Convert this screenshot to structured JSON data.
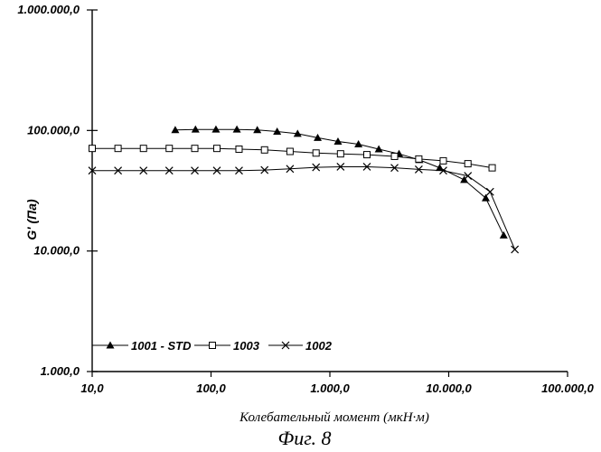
{
  "chart_data": {
    "type": "line",
    "x_scale": "log",
    "y_scale": "log",
    "xlim": [
      10,
      100000
    ],
    "ylim": [
      1000,
      1000000
    ],
    "x_ticks": [
      {
        "value": 10,
        "label": "10,0"
      },
      {
        "value": 100,
        "label": "100,0"
      },
      {
        "value": 1000,
        "label": "1.000,0"
      },
      {
        "value": 10000,
        "label": "10.000,0"
      },
      {
        "value": 100000,
        "label": "100.000,0"
      }
    ],
    "y_ticks": [
      {
        "value": 1000,
        "label": "1.000,0"
      },
      {
        "value": 10000,
        "label": "10.000,0"
      },
      {
        "value": 100000,
        "label": "100.000,0"
      },
      {
        "value": 1000000,
        "label": "1.000.000,0"
      }
    ],
    "xlabel": "Колебательный момент (мкН·м)",
    "ylabel": "G' (Па)",
    "legend_position": "lower-left",
    "grid": false,
    "series": [
      {
        "name": "1001 - STD",
        "marker": "filled-triangle",
        "points": [
          [
            50,
            101000
          ],
          [
            74,
            102000
          ],
          [
            110,
            102000
          ],
          [
            165,
            102000
          ],
          [
            245,
            101000
          ],
          [
            360,
            98000
          ],
          [
            535,
            94000
          ],
          [
            790,
            87000
          ],
          [
            1170,
            81000
          ],
          [
            1740,
            77000
          ],
          [
            2580,
            70000
          ],
          [
            3820,
            64000
          ],
          [
            5660,
            57000
          ],
          [
            8400,
            49000
          ],
          [
            13500,
            39000
          ],
          [
            20500,
            27500
          ],
          [
            29000,
            13500
          ]
        ]
      },
      {
        "name": "1003",
        "marker": "open-square",
        "points": [
          [
            10,
            71000
          ],
          [
            16.5,
            71000
          ],
          [
            27,
            71000
          ],
          [
            44.5,
            71000
          ],
          [
            73,
            71000
          ],
          [
            112,
            71000
          ],
          [
            172,
            70000
          ],
          [
            282,
            69000
          ],
          [
            462,
            67000
          ],
          [
            765,
            65000
          ],
          [
            1230,
            64000
          ],
          [
            2050,
            63000
          ],
          [
            3500,
            61000
          ],
          [
            5600,
            58000
          ],
          [
            9000,
            56000
          ],
          [
            14500,
            53000
          ],
          [
            23200,
            49000
          ]
        ]
      },
      {
        "name": "1002",
        "marker": "x-cross",
        "points": [
          [
            10,
            46500
          ],
          [
            16.5,
            46500
          ],
          [
            27,
            46500
          ],
          [
            44.5,
            46500
          ],
          [
            73,
            46500
          ],
          [
            112,
            46500
          ],
          [
            172,
            46500
          ],
          [
            282,
            47000
          ],
          [
            462,
            48000
          ],
          [
            765,
            49500
          ],
          [
            1230,
            50000
          ],
          [
            2050,
            50000
          ],
          [
            3500,
            49000
          ],
          [
            5600,
            47500
          ],
          [
            9000,
            46500
          ],
          [
            14500,
            42000
          ],
          [
            22300,
            31000
          ],
          [
            36000,
            10300
          ]
        ]
      }
    ]
  },
  "caption": "Фиг. 8"
}
